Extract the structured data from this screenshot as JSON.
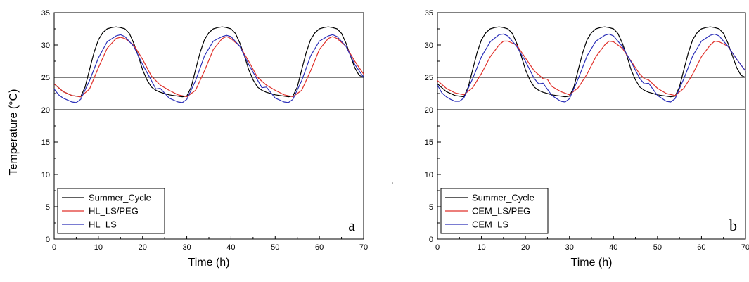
{
  "shared_ylabel": "Temperature (°C)",
  "chart_data": [
    {
      "type": "line",
      "panel_label": "a",
      "xlabel": "Time (h)",
      "ylabel": "Temperature (°C)",
      "xlim": [
        0,
        70
      ],
      "ylim": [
        0,
        35
      ],
      "xticks": [
        0,
        10,
        20,
        30,
        40,
        50,
        60,
        70
      ],
      "yticks": [
        0,
        5,
        10,
        15,
        20,
        25,
        30,
        35
      ],
      "hlines": [
        20,
        25
      ],
      "legend_position": "bottom-left",
      "series": [
        {
          "name": "Summer_Cycle",
          "color": "#000000",
          "x": [
            0,
            2,
            4,
            6,
            7,
            8,
            9,
            10,
            11,
            12,
            13,
            14,
            15,
            16,
            17,
            18,
            19,
            20,
            21,
            22,
            23,
            24,
            25,
            26,
            27,
            28,
            29,
            30,
            31,
            32,
            33,
            34,
            35,
            36,
            37,
            38,
            39,
            40,
            41,
            42,
            43,
            44,
            45,
            46,
            47,
            48,
            49,
            50,
            51,
            52,
            53,
            54,
            55,
            56,
            57,
            58,
            59,
            60,
            61,
            62,
            63,
            64,
            65,
            66,
            67,
            68,
            69,
            70
          ],
          "y": [
            24,
            22.8,
            22.2,
            22,
            23.5,
            26.2,
            28.8,
            30.8,
            31.9,
            32.5,
            32.7,
            32.8,
            32.7,
            32.5,
            31.8,
            30.3,
            28.4,
            26.2,
            24.6,
            23.5,
            23,
            22.7,
            22.5,
            22.3,
            22.2,
            22.1,
            22,
            22.1,
            23.5,
            26.2,
            28.8,
            30.8,
            31.9,
            32.5,
            32.7,
            32.8,
            32.7,
            32.5,
            31.8,
            30.3,
            28.4,
            26.2,
            24.6,
            23.5,
            23,
            22.7,
            22.5,
            22.3,
            22.2,
            22.1,
            22,
            22.1,
            23.5,
            26.2,
            28.8,
            30.8,
            31.9,
            32.5,
            32.7,
            32.8,
            32.7,
            32.5,
            31.8,
            30.3,
            28.4,
            26.5,
            25.3,
            25
          ]
        },
        {
          "name": "HL_LS/PEG",
          "color": "#e0302a",
          "x": [
            0,
            2,
            4,
            6,
            8,
            10,
            12,
            14,
            15,
            16,
            18,
            20,
            22,
            24,
            26,
            28,
            30,
            32,
            34,
            36,
            38,
            39,
            40,
            42,
            44,
            46,
            48,
            50,
            52,
            54,
            56,
            58,
            60,
            62,
            63,
            64,
            66,
            68,
            70
          ],
          "y": [
            24,
            22.8,
            22.2,
            22,
            23.2,
            26.5,
            29.5,
            31,
            31.2,
            31,
            30,
            27.8,
            25.2,
            23.8,
            23,
            22.3,
            22,
            23,
            26,
            29.3,
            31,
            31.3,
            31,
            29.8,
            27.5,
            25,
            23.8,
            23,
            22.3,
            22,
            23,
            26,
            29.3,
            31,
            31.3,
            31,
            29.8,
            27.5,
            25.5
          ]
        },
        {
          "name": "HL_LS",
          "color": "#2b2fb8",
          "x": [
            0,
            1,
            2,
            3,
            4,
            5,
            6,
            8,
            10,
            12,
            14,
            15,
            16,
            18,
            20,
            22,
            23,
            24,
            26,
            28,
            29,
            30,
            32,
            34,
            36,
            38,
            39,
            40,
            42,
            44,
            46,
            47,
            48,
            50,
            52,
            53,
            54,
            56,
            58,
            60,
            62,
            63,
            64,
            66,
            68,
            70
          ],
          "y": [
            23.2,
            22.3,
            21.8,
            21.5,
            21.2,
            21.1,
            21.6,
            24.5,
            28,
            30.5,
            31.4,
            31.6,
            31.3,
            29.8,
            27,
            24.5,
            23.2,
            23.3,
            21.8,
            21.2,
            21.1,
            21.6,
            24.5,
            28.3,
            30.6,
            31.3,
            31.5,
            31.3,
            29.8,
            27,
            24.6,
            23.4,
            23.5,
            21.8,
            21.2,
            21.1,
            21.6,
            24.5,
            28.3,
            30.6,
            31.4,
            31.6,
            31.3,
            29.8,
            27,
            25
          ]
        }
      ]
    },
    {
      "type": "line",
      "panel_label": "b",
      "xlabel": "Time (h)",
      "ylabel": "",
      "xlim": [
        0,
        70
      ],
      "ylim": [
        0,
        35
      ],
      "xticks": [
        0,
        10,
        20,
        30,
        40,
        50,
        60,
        70
      ],
      "yticks": [
        0,
        5,
        10,
        15,
        20,
        25,
        30,
        35
      ],
      "hlines": [
        20,
        25
      ],
      "legend_position": "bottom-left",
      "series": [
        {
          "name": "Summer_Cycle",
          "color": "#000000",
          "x": [
            0,
            2,
            4,
            6,
            7,
            8,
            9,
            10,
            11,
            12,
            13,
            14,
            15,
            16,
            17,
            18,
            19,
            20,
            21,
            22,
            23,
            24,
            25,
            26,
            27,
            28,
            29,
            30,
            31,
            32,
            33,
            34,
            35,
            36,
            37,
            38,
            39,
            40,
            41,
            42,
            43,
            44,
            45,
            46,
            47,
            48,
            49,
            50,
            51,
            52,
            53,
            54,
            55,
            56,
            57,
            58,
            59,
            60,
            61,
            62,
            63,
            64,
            65,
            66,
            67,
            68,
            69,
            70
          ],
          "y": [
            24,
            22.8,
            22.2,
            22,
            23.5,
            26.2,
            28.8,
            30.8,
            31.9,
            32.5,
            32.7,
            32.8,
            32.7,
            32.5,
            31.8,
            30.3,
            28.4,
            26.2,
            24.6,
            23.5,
            23,
            22.7,
            22.5,
            22.3,
            22.2,
            22.1,
            22,
            22.1,
            23.5,
            26.2,
            28.8,
            30.8,
            31.9,
            32.5,
            32.7,
            32.8,
            32.7,
            32.5,
            31.8,
            30.3,
            28.4,
            26.2,
            24.6,
            23.5,
            23,
            22.7,
            22.5,
            22.3,
            22.2,
            22.1,
            22,
            22.1,
            23.5,
            26.2,
            28.8,
            30.8,
            31.9,
            32.5,
            32.7,
            32.8,
            32.7,
            32.5,
            31.8,
            30.3,
            28.4,
            26.5,
            25.3,
            25
          ]
        },
        {
          "name": "CEM_LS/PEG",
          "color": "#e0302a",
          "x": [
            0,
            2,
            4,
            6,
            8,
            10,
            12,
            14,
            15,
            16,
            18,
            20,
            22,
            24,
            25,
            26,
            28,
            30,
            32,
            34,
            36,
            38,
            39,
            40,
            42,
            44,
            46,
            47,
            48,
            50,
            52,
            54,
            56,
            58,
            60,
            62,
            63,
            64,
            66,
            68,
            70
          ],
          "y": [
            24.5,
            23.3,
            22.6,
            22.3,
            23.4,
            25.6,
            28.2,
            30,
            30.6,
            30.6,
            30,
            28,
            26,
            24.8,
            24.7,
            23.6,
            22.8,
            22.3,
            23.4,
            25.5,
            28.2,
            30,
            30.6,
            30.5,
            29.5,
            27.5,
            25.5,
            24.8,
            24.6,
            23.3,
            22.5,
            22.2,
            23.3,
            25.5,
            28.2,
            30,
            30.6,
            30.5,
            29.8,
            27.8,
            26
          ]
        },
        {
          "name": "CEM_LS",
          "color": "#2b2fb8",
          "x": [
            0,
            1,
            2,
            3,
            4,
            5,
            6,
            8,
            10,
            12,
            14,
            15,
            16,
            18,
            20,
            22,
            23,
            24,
            26,
            28,
            29,
            30,
            32,
            34,
            36,
            38,
            39,
            40,
            42,
            44,
            46,
            47,
            48,
            50,
            52,
            53,
            54,
            56,
            58,
            60,
            62,
            63,
            64,
            66,
            68,
            70
          ],
          "y": [
            23.8,
            22.6,
            22,
            21.6,
            21.3,
            21.3,
            21.8,
            24.8,
            28.2,
            30.5,
            31.6,
            31.7,
            31.4,
            29.8,
            27.5,
            24.8,
            24,
            24.1,
            22.2,
            21.3,
            21.2,
            21.7,
            24.8,
            28.3,
            30.6,
            31.5,
            31.7,
            31.4,
            29.8,
            27.4,
            24.8,
            24,
            24.1,
            22.2,
            21.3,
            21.2,
            21.7,
            24.8,
            28.3,
            30.6,
            31.5,
            31.7,
            31.4,
            29.8,
            27.8,
            26
          ]
        }
      ]
    }
  ]
}
